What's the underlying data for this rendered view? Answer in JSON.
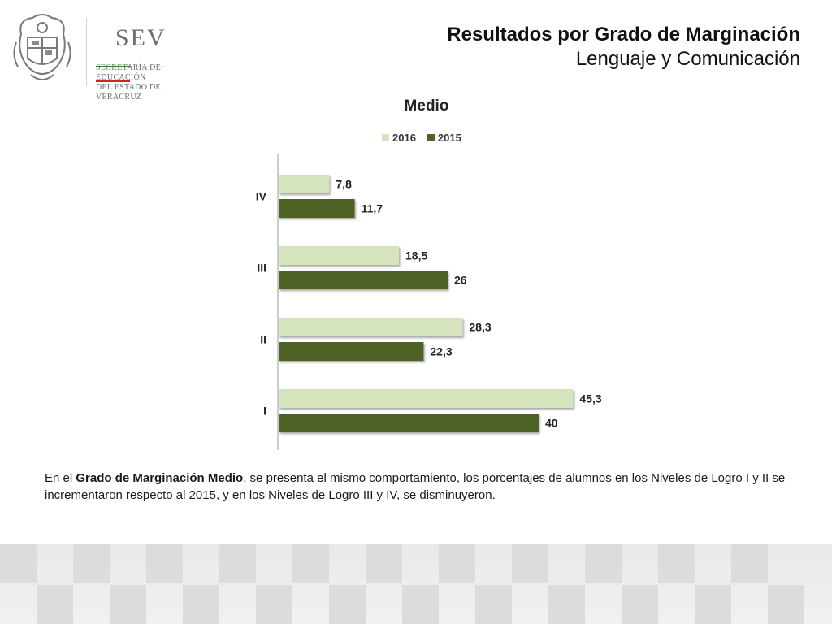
{
  "header": {
    "title": "Resultados por Grado de Marginación",
    "subtitle": "Lenguaje y Comunicación"
  },
  "logo": {
    "acronym": "SEV",
    "line1": "SECRETARÍA DE EDUCACIÓN",
    "line2": "DEL ESTADO DE VERACRUZ",
    "stripe_colors": [
      "#2e7d32",
      "#ffffff",
      "#c62828"
    ],
    "icon": "veracruz-coat-of-arms-icon"
  },
  "chart_data": {
    "type": "bar",
    "orientation": "horizontal",
    "title": "Medio",
    "categories": [
      "IV",
      "III",
      "II",
      "I"
    ],
    "series": [
      {
        "name": "2016",
        "color": "#d6e4be",
        "values": [
          7.8,
          18.5,
          28.3,
          45.3
        ],
        "labels": [
          "7,8",
          "18,5",
          "28,3",
          "45,3"
        ]
      },
      {
        "name": "2015",
        "color": "#4f6228",
        "values": [
          11.7,
          26,
          22.3,
          40
        ],
        "labels": [
          "11,7",
          "26",
          "22,3",
          "40"
        ]
      }
    ],
    "xlim": [
      0,
      50
    ],
    "grid": false,
    "legend": "top"
  },
  "caption": {
    "pre": "En el ",
    "bold": "Grado de Marginación Medio",
    "post": ", se presenta el mismo comportamiento, los porcentajes de alumnos en los Niveles de Logro I y II se incrementaron respecto al 2015, y en los Niveles de Logro III y IV, se disminuyeron."
  }
}
